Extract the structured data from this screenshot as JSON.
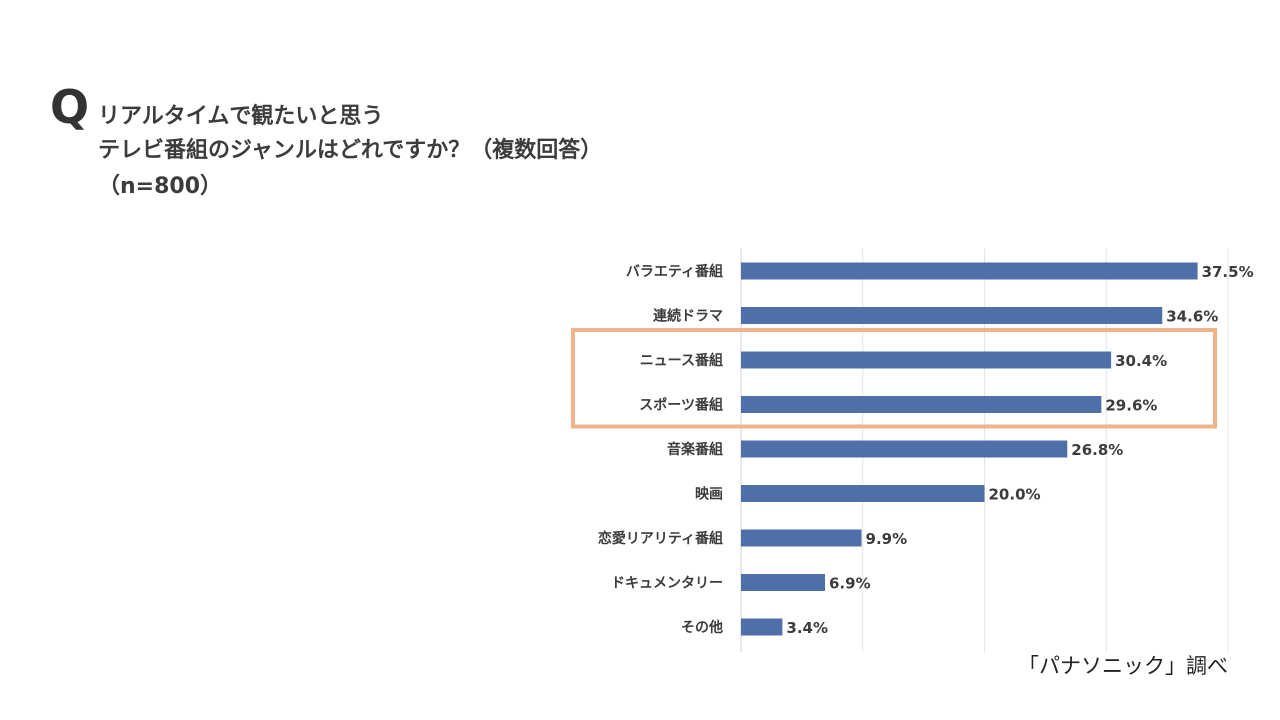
{
  "question": {
    "mark": "Q",
    "line1": "リアルタイムで観たいと思う",
    "line2": "テレビ番組のジャンルはどれですか？（複数回答）",
    "line3": "（n=800）"
  },
  "source": "「パナソニック」調べ",
  "colors": {
    "bar": "#4f6fa8",
    "highlight": "#f0b48a",
    "grid": "#e6e6e6",
    "axis": "#d0d0d0"
  },
  "chart_data": {
    "type": "bar",
    "orientation": "horizontal",
    "categories": [
      "バラエティ番組",
      "連続ドラマ",
      "ニュース番組",
      "スポーツ番組",
      "音楽番組",
      "映画",
      "恋愛リアリティ番組",
      "ドキュメンタリー",
      "その他"
    ],
    "values": [
      37.5,
      34.6,
      30.4,
      29.6,
      26.8,
      20.0,
      9.9,
      6.9,
      3.4
    ],
    "value_labels": [
      "37.5%",
      "34.6%",
      "30.4%",
      "29.6%",
      "26.8%",
      "20.0%",
      "9.9%",
      "6.9%",
      "3.4%"
    ],
    "xlim": [
      0,
      40
    ],
    "grid_ticks": [
      0,
      10,
      20,
      30,
      40
    ],
    "grid": true,
    "highlighted_categories": [
      "ニュース番組",
      "スポーツ番組"
    ],
    "title": "",
    "xlabel": "",
    "ylabel": ""
  }
}
